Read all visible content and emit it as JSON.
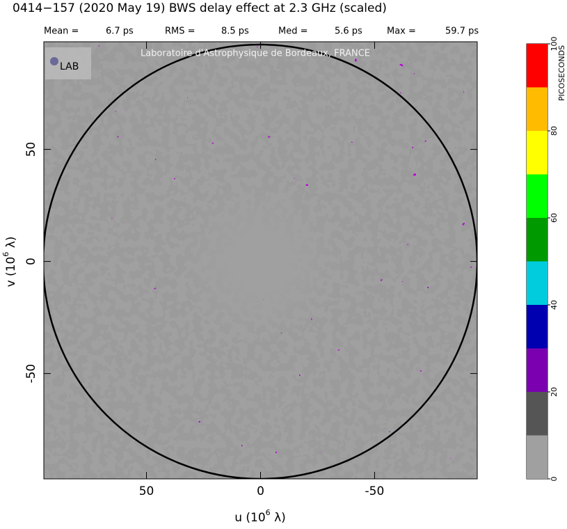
{
  "chart_data": {
    "type": "image",
    "title": "0414−157  (2020 May 19)   BWS delay effect at  2.3 GHz (scaled)",
    "stats": [
      {
        "label": "Mean =",
        "value": "6.7 ps"
      },
      {
        "label": "RMS =",
        "value": "8.5 ps"
      },
      {
        "label": "Med =",
        "value": "5.6 ps"
      },
      {
        "label": "Max =",
        "value": "59.7 ps"
      }
    ],
    "watermark": "Laboratoire d'Astrophysique de Bordeaux, FRANCE",
    "logo": "LAB",
    "xlabel": [
      "u  (10",
      "6",
      " λ)"
    ],
    "ylabel": [
      "v  (10",
      "6",
      " λ)"
    ],
    "xlim": [
      95,
      -95
    ],
    "ylim": [
      -97,
      98
    ],
    "xticks": [
      50,
      0,
      -50
    ],
    "yticks": [
      -50,
      0,
      50
    ],
    "colorbar": {
      "label": "PICOSECONDS",
      "lim": [
        0,
        100
      ],
      "ticks": [
        0,
        20,
        40,
        60,
        80,
        100
      ],
      "bounds": [
        0,
        10,
        20,
        30,
        40,
        50,
        60,
        70,
        80,
        90,
        100
      ],
      "colors": [
        "#a0a0a0",
        "#555555",
        "#7a00b0",
        "#0000b0",
        "#00ccdd",
        "#009900",
        "#00ff00",
        "#ffff00",
        "#ffbb00",
        "#ff0000"
      ]
    }
  }
}
